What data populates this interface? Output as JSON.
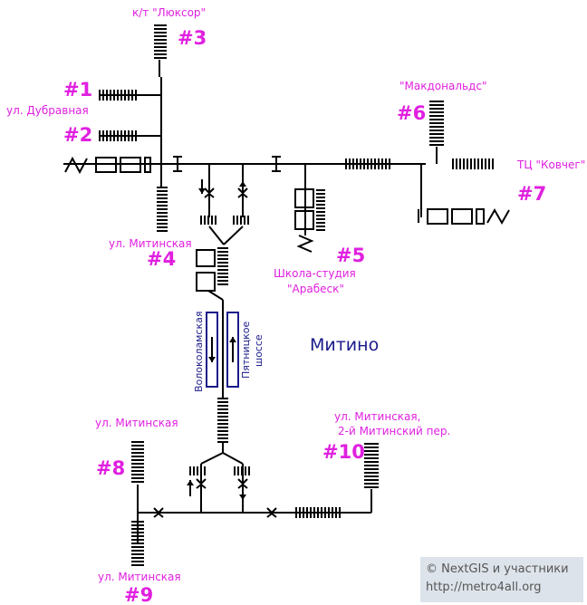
{
  "district": "Митино",
  "exits": [
    {
      "num": "#1",
      "label": "ул. Дубравная"
    },
    {
      "num": "#2",
      "label": ""
    },
    {
      "num": "#3",
      "label": "к/т \"Люксор\""
    },
    {
      "num": "#4",
      "label": "ул. Митинская"
    },
    {
      "num": "#5",
      "label": "Школа-студия",
      "label2": "\"Арабеск\""
    },
    {
      "num": "#6",
      "label": "\"Макдональдс\""
    },
    {
      "num": "#7",
      "label": "ТЦ \"Ковчег\""
    },
    {
      "num": "#8",
      "label": "ул. Митинская"
    },
    {
      "num": "#9",
      "label": "ул. Митинская"
    },
    {
      "num": "#10",
      "label": "ул. Митинская,",
      "label2": "2-й Митинский пер."
    }
  ],
  "roads": {
    "left": "Волоколамская",
    "right_line1": "Пятницкое",
    "right_line2": "шоссе"
  },
  "credit": {
    "line1": "© NextGIS и участники",
    "line2": "http://metro4all.org"
  }
}
